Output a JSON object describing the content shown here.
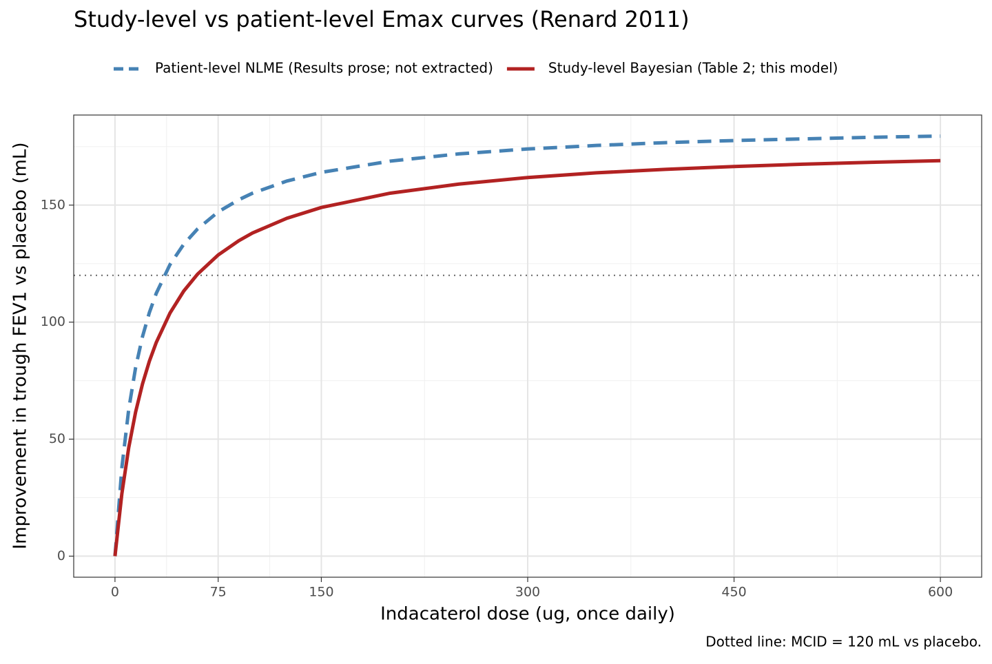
{
  "chart_data": {
    "type": "line",
    "title": "Study-level vs patient-level Emax curves (Renard 2011)",
    "x_label": "Indacaterol dose (ug, once daily)",
    "y_label": "Improvement in trough FEV1 vs placebo (mL)",
    "caption": "Dotted line: MCID = 120 mL vs placebo.",
    "x": [
      0,
      5,
      10,
      15,
      20,
      25,
      30,
      40,
      50,
      60,
      75,
      90,
      100,
      125,
      150,
      200,
      250,
      300,
      350,
      400,
      450,
      500,
      550,
      600
    ],
    "series": [
      {
        "name": "Patient-level NLME (Results prose; not extracted)",
        "color": "#4682b4",
        "dash": true,
        "values": [
          0,
          37.8,
          62.8,
          80.6,
          93.8,
          104.1,
          112.3,
          124.6,
          133.3,
          139.8,
          147.1,
          152.3,
          155.1,
          160.3,
          164.0,
          168.8,
          171.9,
          174.0,
          175.5,
          176.7,
          177.6,
          178.3,
          179.0,
          179.5
        ]
      },
      {
        "name": "Study-level Bayesian (Table 2; this model)",
        "color": "#b22222",
        "dash": false,
        "values": [
          0,
          26.7,
          46.4,
          61.6,
          73.6,
          83.3,
          91.3,
          103.9,
          113.3,
          120.5,
          128.7,
          134.8,
          138.1,
          144.4,
          149.0,
          155.1,
          159.0,
          161.8,
          163.8,
          165.3,
          166.5,
          167.5,
          168.3,
          169.0
        ]
      }
    ],
    "hline": 120,
    "xlim": [
      -30,
      630
    ],
    "ylim": [
      -9,
      188.5
    ],
    "xticks": [
      0,
      75,
      150,
      300,
      450,
      600
    ],
    "yticks": [
      0,
      50,
      100,
      150
    ],
    "x_minor_ticks": [
      37.5,
      112.5,
      225,
      375,
      525
    ],
    "y_minor_ticks": [
      25,
      75,
      125,
      175
    ],
    "grid": true,
    "legend": "top"
  }
}
